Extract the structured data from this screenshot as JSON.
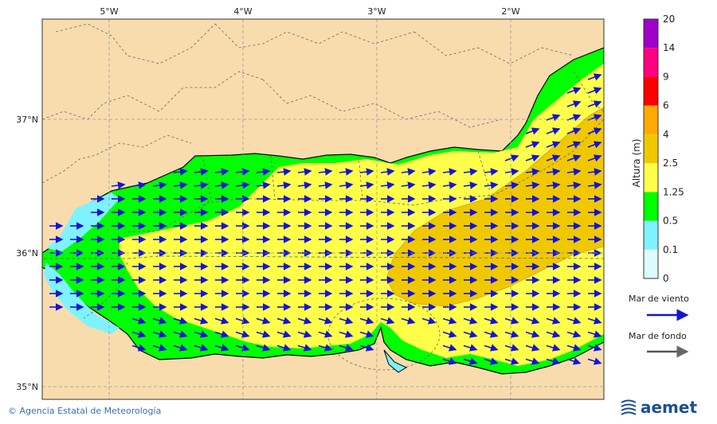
{
  "map": {
    "lon_ticks": [
      "5°W",
      "4°W",
      "3°W",
      "2°W"
    ],
    "lat_ticks": [
      "37°N",
      "36°N",
      "35°N"
    ],
    "colors": {
      "land": "#f8dcae",
      "sea_calm": "#ddfcff",
      "sea_01": "#7ff2ff",
      "sea_05": "#00ff00",
      "sea_125": "#ffff4a",
      "sea_25": "#f0c800",
      "wind_arrow": "#1414d6",
      "swell_arrow": "#666666"
    }
  },
  "colorbar": {
    "title": "Altura (m)",
    "levels": [
      "0",
      "0.1",
      "0.5",
      "1.25",
      "2.5",
      "4",
      "6",
      "9",
      "14",
      "20"
    ],
    "colors": [
      "#ddfcff",
      "#7ff2ff",
      "#00ff00",
      "#ffff4a",
      "#f0c800",
      "#ffaa00",
      "#ff0000",
      "#ff0080",
      "#a000c8"
    ]
  },
  "legend": {
    "wind_sea": "Mar de viento",
    "swell": "Mar de fondo"
  },
  "footer": {
    "credit": "Agencia Estatal de Meteorología",
    "logo_text": "aemet"
  }
}
